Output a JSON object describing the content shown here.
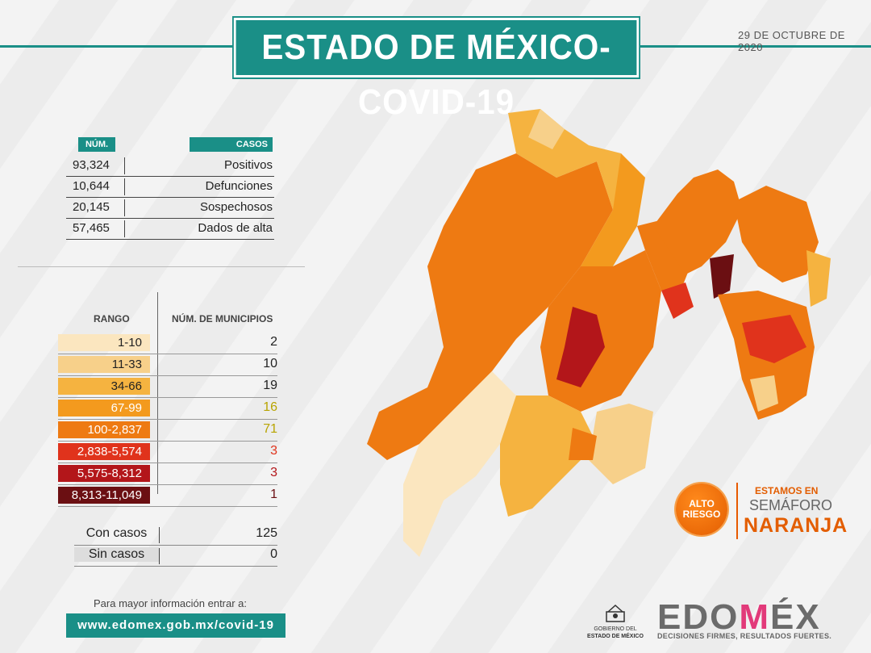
{
  "title": "ESTADO DE MÉXICO-COVID-19",
  "date": "29 DE OCTUBRE DE 2020",
  "cases_table": {
    "header_num": "NÚM.",
    "header_casos": "CASOS",
    "rows": [
      {
        "num": "93,324",
        "label": "Positivos"
      },
      {
        "num": "10,644",
        "label": "Defunciones"
      },
      {
        "num": "20,145",
        "label": "Sospechosos"
      },
      {
        "num": "57,465",
        "label": "Dados de alta"
      }
    ]
  },
  "ranges": {
    "header_rango": "RANGO",
    "header_municipios": "NÚM. DE MUNICIPIOS",
    "rows": [
      {
        "range": "1-10",
        "count": "2",
        "color": "#fbe6bf",
        "text_color": "#222",
        "count_color": "#222"
      },
      {
        "range": "11-33",
        "count": "10",
        "color": "#f7d08a",
        "text_color": "#222",
        "count_color": "#222"
      },
      {
        "range": "34-66",
        "count": "19",
        "color": "#f5b340",
        "text_color": "#222",
        "count_color": "#222"
      },
      {
        "range": "67-99",
        "count": "16",
        "color": "#f39a1e",
        "text_color": "#fff",
        "count_color": "#b8a400"
      },
      {
        "range": "100-2,837",
        "count": "71",
        "color": "#ee7a12",
        "text_color": "#fff",
        "count_color": "#b8a400"
      },
      {
        "range": "2,838-5,574",
        "count": "3",
        "color": "#e0331c",
        "text_color": "#fff",
        "count_color": "#e0331c"
      },
      {
        "range": "5,575-8,312",
        "count": "3",
        "color": "#b3161a",
        "text_color": "#fff",
        "count_color": "#b3161a"
      },
      {
        "range": "8,313-11,049",
        "count": "1",
        "color": "#6b0f12",
        "text_color": "#fff",
        "count_color": "#6b0f12"
      }
    ]
  },
  "totals": [
    {
      "label": "Con casos",
      "value": "125"
    },
    {
      "label": "Sin casos",
      "value": "0"
    }
  ],
  "info_text": "Para mayor información entrar a:",
  "url": "www.edomex.gob.mx/covid-19",
  "semaforo": {
    "badge_line1": "ALTO",
    "badge_line2": "RIESGO",
    "line1": "ESTAMOS EN",
    "line2": "SEMÁFORO",
    "line3": "NARANJA"
  },
  "gobierno": {
    "line1": "GOBIERNO DEL",
    "line2": "ESTADO DE MÉXICO"
  },
  "brand": {
    "logo_part1": "EDO",
    "logo_part2": "M",
    "logo_part3": "ÉX",
    "tagline": "DECISIONES FIRMES, RESULTADOS FUERTES."
  }
}
